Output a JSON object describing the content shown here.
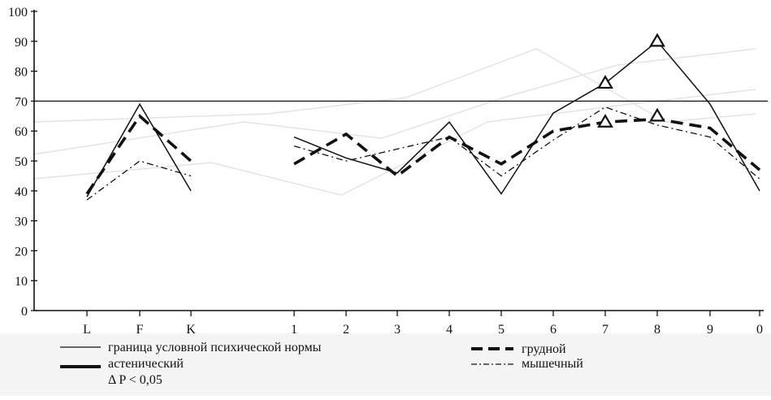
{
  "chart_data": {
    "type": "line",
    "title": "",
    "xlabel": "",
    "ylabel": "",
    "ylim": [
      0,
      100
    ],
    "y_ticks": [
      "0",
      "10",
      "20",
      "30",
      "40",
      "50",
      "60",
      "70",
      "80",
      "90",
      "100"
    ],
    "categories": [
      "L",
      "F",
      "K",
      "1",
      "2",
      "3",
      "4",
      "5",
      "6",
      "7",
      "8",
      "9",
      "0"
    ],
    "norm_line": {
      "name": "граница условной психической нормы",
      "value": 70
    },
    "series": [
      {
        "name": "астенический",
        "style": "solid-thin",
        "segments": [
          {
            "x": [
              "L",
              "F",
              "K"
            ],
            "y": [
              38,
              69,
              40
            ]
          },
          {
            "x": [
              "1",
              "2",
              "3",
              "4",
              "5",
              "6",
              "7",
              "8",
              "9",
              "0"
            ],
            "y": [
              58,
              51,
              46,
              63,
              39,
              66,
              76,
              90,
              69,
              40
            ]
          }
        ]
      },
      {
        "name": "грудной",
        "style": "dashed-thick",
        "segments": [
          {
            "x": [
              "L",
              "F",
              "K"
            ],
            "y": [
              39,
              65,
              50
            ]
          },
          {
            "x": [
              "1",
              "2",
              "3",
              "4",
              "5",
              "6",
              "7",
              "8",
              "9",
              "0"
            ],
            "y": [
              49,
              59,
              45,
              58,
              49,
              60,
              63,
              64,
              61,
              47
            ]
          }
        ]
      },
      {
        "name": "мышечный",
        "style": "dash-dot",
        "segments": [
          {
            "x": [
              "L",
              "F",
              "K"
            ],
            "y": [
              37,
              50,
              45
            ]
          },
          {
            "x": [
              "1",
              "2",
              "3",
              "4",
              "5",
              "6",
              "7",
              "8",
              "9",
              "0"
            ],
            "y": [
              55,
              50,
              54,
              58,
              45,
              57,
              68,
              62,
              58,
              44
            ]
          }
        ]
      }
    ],
    "significance_markers": [
      {
        "x": "7",
        "y": 76
      },
      {
        "x": "8",
        "y": 90
      },
      {
        "x": "7",
        "y": 63
      },
      {
        "x": "8",
        "y": 65
      }
    ],
    "legend": {
      "norm": "граница условной психической нормы",
      "asthenic": "астенический",
      "significance": "Δ P < 0,05",
      "thoracic": "грудной",
      "muscular": "мышечный"
    }
  }
}
